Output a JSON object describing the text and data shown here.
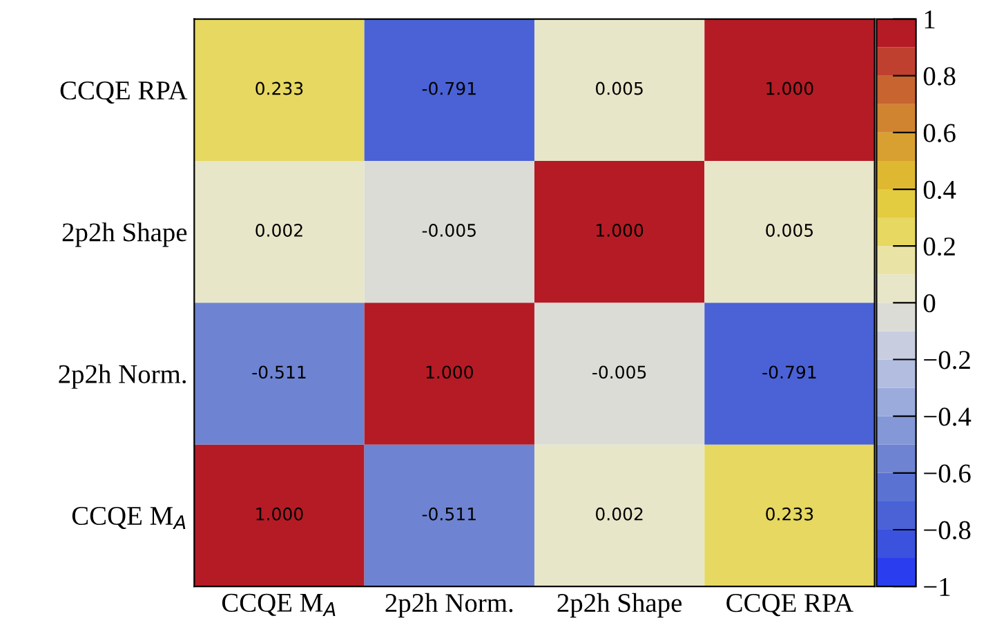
{
  "chart_data": {
    "type": "heatmap",
    "categories": [
      "CCQE M$_{A}$",
      "2p2h Norm.",
      "2p2h Shape",
      "CCQE RPA"
    ],
    "y_categories": [
      "CCQE RPA",
      "2p2h Shape",
      "2p2h Norm.",
      "CCQE M$_{A}$"
    ],
    "cells": [
      [
        0.233,
        -0.791,
        0.005,
        1.0
      ],
      [
        0.002,
        -0.005,
        1.0,
        0.005
      ],
      [
        -0.511,
        1.0,
        -0.005,
        -0.791
      ],
      [
        1.0,
        -0.511,
        0.002,
        0.233
      ]
    ],
    "cell_labels": [
      [
        "0.233",
        "-0.791",
        "0.005",
        "1.000"
      ],
      [
        "0.002",
        "-0.005",
        "1.000",
        "0.005"
      ],
      [
        "-0.511",
        "1.000",
        "-0.005",
        "-0.791"
      ],
      [
        "1.000",
        "-0.511",
        "0.002",
        "0.233"
      ]
    ],
    "clim": [
      -1,
      1
    ],
    "cticks": [
      {
        "value": -1,
        "label": "−1"
      },
      {
        "value": -0.8,
        "label": "−0.8"
      },
      {
        "value": -0.6,
        "label": "−0.6"
      },
      {
        "value": -0.4,
        "label": "−0.4"
      },
      {
        "value": -0.2,
        "label": "−0.2"
      },
      0,
      0.2,
      0.4,
      0.6,
      0.8,
      1
    ]
  }
}
